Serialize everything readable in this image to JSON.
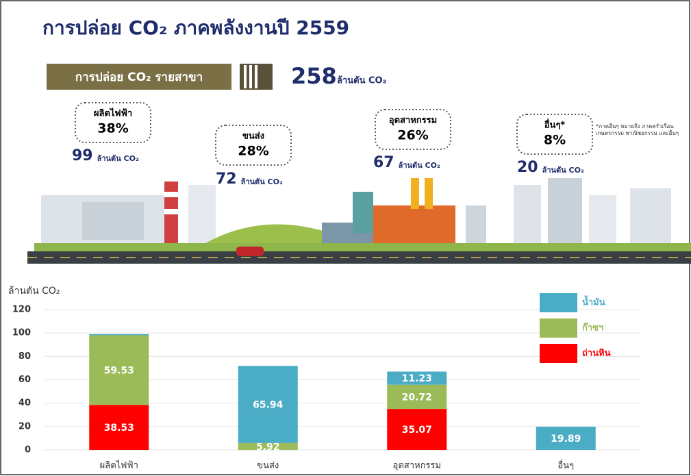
{
  "header": {
    "title": "การปล่อย CO₂ ภาคพลังงานปี 2559",
    "total_label": "การปล่อย CO₂ รายสาขา",
    "total_value": "258",
    "total_unit": "ล้านตัน CO₂"
  },
  "sectors": [
    {
      "name": "ผลิตไฟฟ้า",
      "share": "38%",
      "amount": "99",
      "unit": "ล้านตัน CO₂"
    },
    {
      "name": "ขนส่ง",
      "share": "28%",
      "amount": "72",
      "unit": "ล้านตัน CO₂"
    },
    {
      "name": "อุตสาหกรรม",
      "share": "26%",
      "amount": "67",
      "unit": "ล้านตัน CO₂"
    },
    {
      "name": "อื่นๆ*",
      "share": "8%",
      "amount": "20",
      "unit": "ล้านตัน CO₂"
    }
  ],
  "note": "*ภาคอื่นๆ หมายถึง ภาคครัวเรือน เกษตรกรรม พาณิชยกรรม และอื่นๆ",
  "chart_data": {
    "type": "bar",
    "stacked": true,
    "y_label": "ล้านตัน CO₂",
    "categories": [
      "ผลิตไฟฟ้า",
      "ขนส่ง",
      "อุตสาหกรรม",
      "อื่นๆ"
    ],
    "series": [
      {
        "name": "ถ่านหิน",
        "color": "#ff0000",
        "values": [
          38.53,
          null,
          35.07,
          null
        ]
      },
      {
        "name": "ก๊าซฯ",
        "color": "#9bbb59",
        "values": [
          59.53,
          5.92,
          20.72,
          null
        ]
      },
      {
        "name": "น้ำมัน",
        "color": "#4bacc6",
        "values": [
          0.94,
          65.94,
          11.23,
          19.89
        ]
      }
    ],
    "ylim": [
      0,
      120
    ],
    "yticks": [
      0,
      20,
      40,
      60,
      80,
      100,
      120
    ],
    "grid": true,
    "legend": "upper right"
  }
}
